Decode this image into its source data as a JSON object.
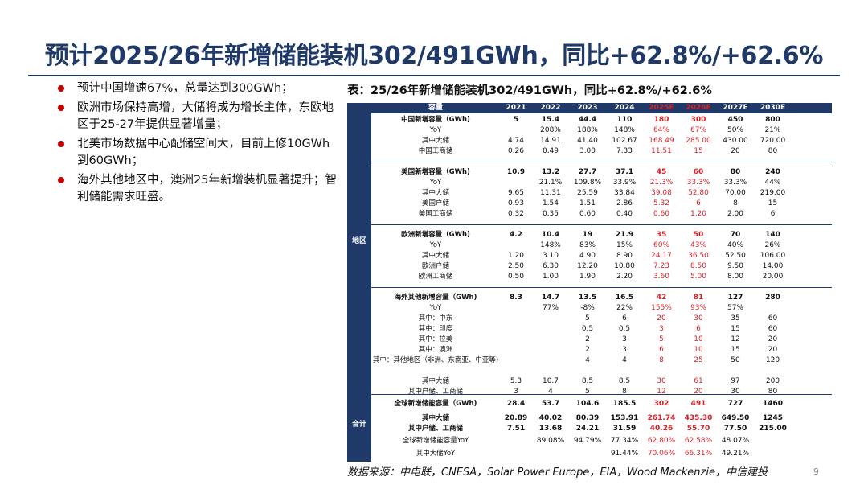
{
  "title": "预计2025/26年新增储能装机302/491GWh，同比+62.8%/+62.6%",
  "bullets": [
    "预计中国增速67%，总量达到300GWh；",
    "欧洲市场保持高增，大储将成为增长主体，东欧地区于25-27年提供显著增量；",
    "北美市场数据中心配储空间大，目前上修10GWh到60GWh；",
    "海外其他地区中，澳洲25年新增装机显著提升；智利储能需求旺盛。"
  ],
  "table": {
    "caption": "表：25/26年新增储能装机302/491GWh，同比+62.8%/+62.6%",
    "header": [
      "容量",
      "2021",
      "2022",
      "2023",
      "2024",
      "2025E",
      "2026E",
      "2027E",
      "2030E"
    ],
    "side_labels": [
      "地区",
      "合计"
    ],
    "rows": [
      {
        "label": "中国新增容量（GWh)",
        "bold": true,
        "values": [
          "5",
          "15.4",
          "44.4",
          "110",
          "180",
          "300",
          "450",
          "800"
        ]
      },
      {
        "label": "YoY",
        "bold": false,
        "values": [
          "",
          "208%",
          "188%",
          "148%",
          "64%",
          "67%",
          "50%",
          "21%"
        ]
      },
      {
        "label": "其中大储",
        "bold": false,
        "values": [
          "4.74",
          "14.91",
          "41.40",
          "102.67",
          "168.49",
          "285.00",
          "430.00",
          "720.00"
        ]
      },
      {
        "label": "中国工商储",
        "bold": false,
        "values": [
          "0.26",
          "0.49",
          "3.00",
          "7.33",
          "11.51",
          "15",
          "20",
          "80"
        ]
      },
      {
        "label": "美国新增容量（GWh)",
        "bold": true,
        "values": [
          "10.9",
          "13.2",
          "27.7",
          "37.1",
          "45",
          "60",
          "80",
          "240"
        ]
      },
      {
        "label": "YoY",
        "bold": false,
        "values": [
          "",
          "21.1%",
          "109.8%",
          "33.9%",
          "21.3%",
          "33.3%",
          "33.3%",
          "44%"
        ]
      },
      {
        "label": "其中大储",
        "bold": false,
        "values": [
          "9.65",
          "11.31",
          "25.59",
          "33.84",
          "39.08",
          "52.80",
          "70.00",
          "219.00"
        ]
      },
      {
        "label": "美国户储",
        "bold": false,
        "values": [
          "0.93",
          "1.54",
          "1.51",
          "2.86",
          "5.32",
          "6",
          "8",
          "15"
        ]
      },
      {
        "label": "美国工商储",
        "bold": false,
        "values": [
          "0.32",
          "0.35",
          "0.60",
          "0.40",
          "0.60",
          "1.20",
          "2.00",
          "6"
        ]
      },
      {
        "label": "欧洲新增容量（GWh)",
        "bold": true,
        "values": [
          "4.2",
          "10.4",
          "19",
          "21.9",
          "35",
          "50",
          "70",
          "140"
        ]
      },
      {
        "label": "YoY",
        "bold": false,
        "values": [
          "",
          "148%",
          "83%",
          "15%",
          "60%",
          "43%",
          "40%",
          "26%"
        ]
      },
      {
        "label": "其中大储",
        "bold": false,
        "values": [
          "1.20",
          "3.10",
          "4.90",
          "8.90",
          "24.17",
          "36.50",
          "52.50",
          "106.00"
        ]
      },
      {
        "label": "欧洲户储",
        "bold": false,
        "values": [
          "2.50",
          "6.30",
          "12.20",
          "10.80",
          "7.23",
          "8.50",
          "9.50",
          "14.00"
        ]
      },
      {
        "label": "欧洲工商储",
        "bold": false,
        "values": [
          "0.50",
          "1.00",
          "1.90",
          "2.20",
          "3.60",
          "5.00",
          "8.00",
          "20.00"
        ]
      },
      {
        "label": "海外其他新增容量（GWh)",
        "bold": true,
        "values": [
          "8.3",
          "14.7",
          "13.5",
          "16.5",
          "42",
          "81",
          "127",
          "280"
        ]
      },
      {
        "label": "YoY",
        "bold": false,
        "values": [
          "",
          "77%",
          "-8%",
          "22%",
          "155%",
          "93%",
          "57%",
          ""
        ]
      },
      {
        "label": "其中：中东",
        "bold": false,
        "values": [
          "",
          "",
          "5",
          "6",
          "20",
          "30",
          "35",
          "60"
        ]
      },
      {
        "label": "其中：印度",
        "bold": false,
        "values": [
          "",
          "",
          "0.5",
          "0.5",
          "3",
          "6",
          "15",
          "60"
        ]
      },
      {
        "label": "其中：拉美",
        "bold": false,
        "values": [
          "",
          "",
          "2",
          "3",
          "5",
          "10",
          "12",
          "20"
        ]
      },
      {
        "label": "其中：澳洲",
        "bold": false,
        "values": [
          "",
          "",
          "2",
          "3",
          "6",
          "10",
          "15",
          "20"
        ]
      },
      {
        "label": "其中：其他地区（非洲、东南亚、中亚等)",
        "bold": false,
        "values": [
          "",
          "",
          "4",
          "4",
          "8",
          "25",
          "50",
          "120"
        ]
      },
      {
        "label": "其中大储",
        "bold": false,
        "values": [
          "5.3",
          "10.7",
          "8.5",
          "8.5",
          "30",
          "61",
          "97",
          "200"
        ]
      },
      {
        "label": "其中户储、工商储",
        "bold": false,
        "values": [
          "3",
          "4",
          "5",
          "8",
          "12",
          "20",
          "30",
          "80"
        ]
      },
      {
        "label": "全球新增储能容量（GWh)",
        "bold": true,
        "values": [
          "28.4",
          "53.7",
          "104.6",
          "185.5",
          "302",
          "491",
          "727",
          "1460"
        ]
      },
      {
        "label": "其中大储",
        "bold": true,
        "values": [
          "20.89",
          "40.02",
          "80.39",
          "153.91",
          "261.74",
          "435.30",
          "649.50",
          "1245"
        ]
      },
      {
        "label": "其中户储、工商储",
        "bold": true,
        "values": [
          "7.51",
          "13.68",
          "24.21",
          "31.59",
          "40.26",
          "55.70",
          "77.50",
          "215.00"
        ]
      },
      {
        "label": "全球新增储能容量YoY",
        "bold": false,
        "values": [
          "",
          "89.08%",
          "94.79%",
          "77.34%",
          "62.80%",
          "62.58%",
          "48.07%",
          ""
        ]
      },
      {
        "label": "其中大储YoY",
        "bold": false,
        "values": [
          "",
          "",
          "",
          "91.44%",
          "70.06%",
          "66.31%",
          "49.21%",
          ""
        ]
      }
    ]
  },
  "source": "数据来源：中电联，CNESA，Solar Power Europe，EIA，Wood Mackenzie，中信建投",
  "page_number": "9",
  "colors": {
    "navy": "#1f3a68",
    "accent_red": "#d4242a",
    "bullet_red": "#c00000"
  }
}
